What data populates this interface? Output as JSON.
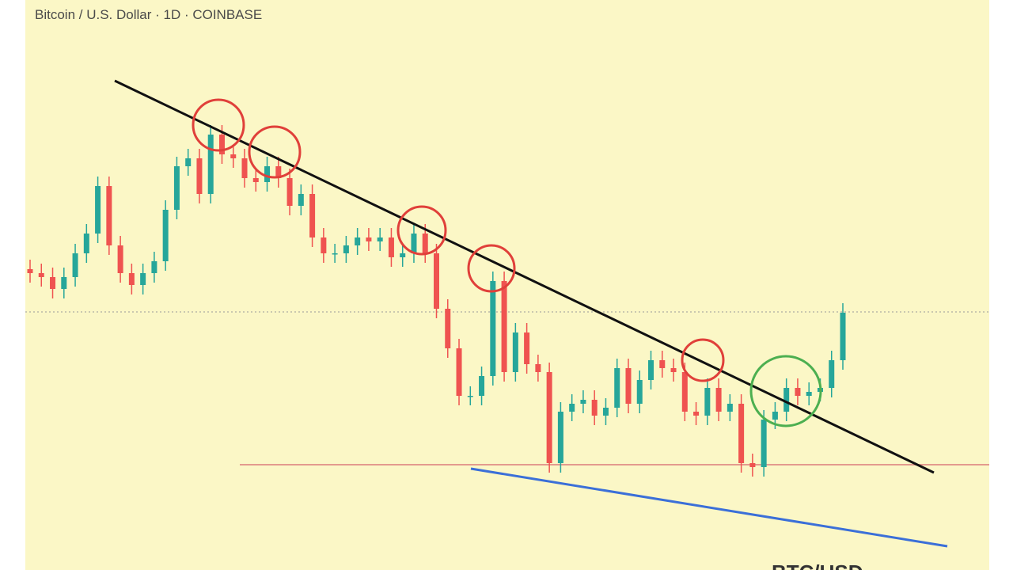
{
  "chart_data": {
    "type": "candlestick",
    "title": "Bitcoin / U.S. Dollar · 1D · COINBASE",
    "watermark": "BTC/USD",
    "ylim": [
      0,
      720
    ],
    "up_color": "#26a69a",
    "down_color": "#ef5350",
    "open": [
      380,
      375,
      370,
      355,
      370,
      400,
      425,
      485,
      410,
      375,
      360,
      375,
      390,
      455,
      510,
      520,
      475,
      550,
      525,
      520,
      495,
      490,
      510,
      495,
      460,
      475,
      420,
      400,
      400,
      410,
      420,
      415,
      420,
      395,
      400,
      425,
      400,
      330,
      280,
      220,
      220,
      245,
      365,
      250,
      300,
      260,
      250,
      135,
      200,
      210,
      215,
      195,
      205,
      255,
      210,
      240,
      265,
      255,
      250,
      200,
      195,
      230,
      200,
      210,
      135,
      130,
      190,
      200,
      230,
      220,
      225,
      230,
      265
    ],
    "high": [
      392,
      387,
      382,
      382,
      412,
      437,
      497,
      497,
      422,
      387,
      387,
      402,
      467,
      522,
      532,
      532,
      562,
      562,
      537,
      532,
      507,
      522,
      522,
      507,
      487,
      487,
      432,
      412,
      422,
      432,
      432,
      432,
      432,
      412,
      437,
      437,
      412,
      342,
      292,
      232,
      257,
      377,
      377,
      312,
      312,
      272,
      262,
      212,
      222,
      227,
      227,
      217,
      267,
      267,
      252,
      277,
      277,
      267,
      262,
      212,
      242,
      242,
      222,
      222,
      147,
      202,
      212,
      242,
      242,
      237,
      242,
      277,
      337
    ],
    "low": [
      363,
      358,
      343,
      343,
      358,
      388,
      413,
      398,
      363,
      348,
      348,
      363,
      378,
      443,
      498,
      463,
      463,
      513,
      508,
      483,
      478,
      478,
      483,
      448,
      448,
      408,
      388,
      388,
      388,
      398,
      403,
      403,
      383,
      383,
      388,
      388,
      318,
      268,
      208,
      208,
      208,
      233,
      238,
      238,
      248,
      238,
      123,
      123,
      188,
      198,
      183,
      183,
      193,
      198,
      198,
      228,
      243,
      238,
      188,
      183,
      183,
      188,
      188,
      123,
      118,
      118,
      178,
      188,
      208,
      208,
      213,
      218,
      253
    ],
    "close": [
      375,
      370,
      355,
      370,
      400,
      425,
      485,
      410,
      375,
      360,
      375,
      390,
      455,
      510,
      520,
      475,
      550,
      525,
      520,
      495,
      490,
      510,
      495,
      460,
      475,
      420,
      400,
      400,
      410,
      420,
      415,
      420,
      395,
      400,
      425,
      400,
      330,
      280,
      220,
      220,
      245,
      365,
      250,
      300,
      260,
      250,
      135,
      200,
      210,
      215,
      195,
      205,
      255,
      210,
      240,
      265,
      255,
      250,
      200,
      195,
      230,
      200,
      210,
      135,
      130,
      190,
      200,
      230,
      220,
      225,
      230,
      265,
      325
    ]
  }
}
